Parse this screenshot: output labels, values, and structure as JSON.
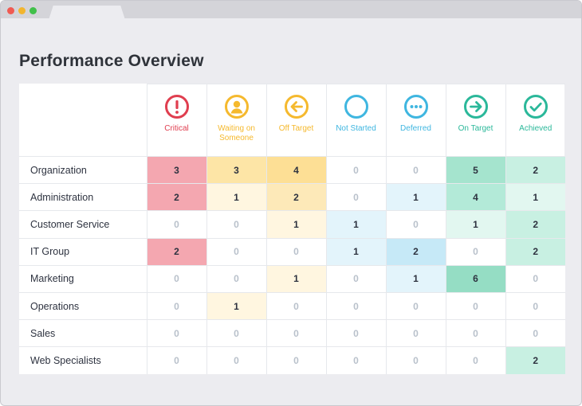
{
  "page": {
    "title": "Performance Overview"
  },
  "statuses": [
    {
      "key": "critical",
      "label": "Critical",
      "color": "#e03e4f",
      "icon": "exclamation-circle-icon"
    },
    {
      "key": "waiting",
      "label": "Waiting on Someone",
      "color": "#f5b92e",
      "icon": "person-circle-icon"
    },
    {
      "key": "off_target",
      "label": "Off Target",
      "color": "#f5b92e",
      "icon": "arrow-left-circle-icon"
    },
    {
      "key": "not_started",
      "label": "Not Started",
      "color": "#3fb6e0",
      "icon": "empty-circle-icon"
    },
    {
      "key": "deferred",
      "label": "Deferred",
      "color": "#3fb6e0",
      "icon": "ellipsis-circle-icon"
    },
    {
      "key": "on_target",
      "label": "On Target",
      "color": "#2bb89a",
      "icon": "arrow-right-circle-icon"
    },
    {
      "key": "achieved",
      "label": "Achieved",
      "color": "#2bb89a",
      "icon": "checkmark-circle-icon"
    }
  ],
  "rows": [
    {
      "name": "Organization",
      "values": [
        3,
        3,
        4,
        0,
        0,
        5,
        2
      ]
    },
    {
      "name": "Administration",
      "values": [
        2,
        1,
        2,
        0,
        1,
        4,
        1
      ]
    },
    {
      "name": "Customer Service",
      "values": [
        0,
        0,
        1,
        1,
        0,
        1,
        2
      ]
    },
    {
      "name": "IT Group",
      "values": [
        2,
        0,
        0,
        1,
        2,
        0,
        2
      ]
    },
    {
      "name": "Marketing",
      "values": [
        0,
        0,
        1,
        0,
        1,
        6,
        0
      ]
    },
    {
      "name": "Operations",
      "values": [
        0,
        1,
        0,
        0,
        0,
        0,
        0
      ]
    },
    {
      "name": "Sales",
      "values": [
        0,
        0,
        0,
        0,
        0,
        0,
        0
      ]
    },
    {
      "name": "Web Specialists",
      "values": [
        0,
        0,
        0,
        0,
        0,
        0,
        2
      ]
    }
  ],
  "cell_colors": {
    "critical": [
      "#ffffff",
      "#fbd6da",
      "#f4a7b0"
    ],
    "waiting": [
      "#ffffff",
      "#fff6e0",
      "#fde5a6"
    ],
    "off_target": [
      "#ffffff",
      "#fff6e0",
      "#fde9b8",
      "#fde9b8",
      "#fddf95"
    ],
    "not_started": [
      "#ffffff",
      "#e3f4fb"
    ],
    "deferred": [
      "#ffffff",
      "#e3f4fb",
      "#c6e9f7"
    ],
    "on_target": [
      "#ffffff",
      "#e2f7f0",
      "#e2f7f0",
      "#e2f7f0",
      "#b3ead8",
      "#a5e4ce",
      "#95ddc4"
    ],
    "achieved": [
      "#ffffff",
      "#e2f7f0",
      "#c8f0e2"
    ]
  }
}
